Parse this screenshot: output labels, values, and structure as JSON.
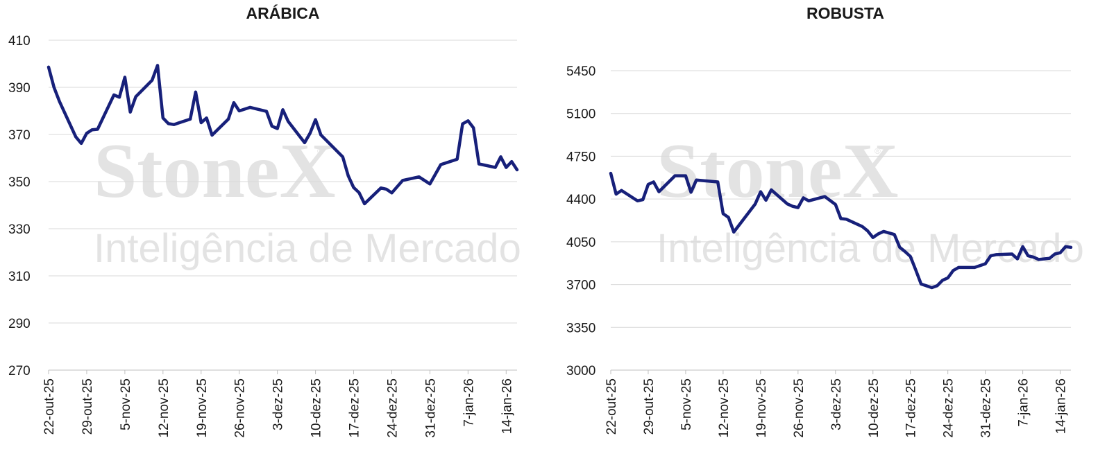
{
  "watermark": {
    "brand": "StoneX",
    "registered": "®",
    "subtitle": "Inteligência de Mercado"
  },
  "colors": {
    "series": "#17207a",
    "grid": "#d9d9d9",
    "watermark": "#e3e3e3"
  },
  "chart_data": [
    {
      "id": "arabica",
      "type": "line",
      "title": "ARÁBICA",
      "xlabel": "",
      "ylabel": "",
      "ylim": [
        270,
        410
      ],
      "yticks": [
        270,
        290,
        310,
        330,
        350,
        370,
        390,
        410
      ],
      "grid": true,
      "x_tick_labels": [
        "22-out-25",
        "29-out-25",
        "5-nov-25",
        "12-nov-25",
        "19-nov-25",
        "26-nov-25",
        "3-dez-25",
        "10-dez-25",
        "17-dez-25",
        "24-dez-25",
        "31-dez-25",
        "7-jan-26",
        "14-jan-26"
      ],
      "x_range": [
        "2025-10-22",
        "2026-01-16"
      ],
      "series": [
        {
          "points": [
            [
              "2025-10-22",
              398.6
            ],
            [
              "2025-10-23",
              390.0
            ],
            [
              "2025-10-24",
              384.0
            ],
            [
              "2025-10-27",
              369.0
            ],
            [
              "2025-10-28",
              366.2
            ],
            [
              "2025-10-29",
              370.5
            ],
            [
              "2025-10-30",
              372.0
            ],
            [
              "2025-10-31",
              372.2
            ],
            [
              "2025-11-03",
              386.8
            ],
            [
              "2025-11-04",
              385.8
            ],
            [
              "2025-11-05",
              394.3
            ],
            [
              "2025-11-06",
              379.5
            ],
            [
              "2025-11-07",
              386.0
            ],
            [
              "2025-11-10",
              393.0
            ],
            [
              "2025-11-11",
              399.3
            ],
            [
              "2025-11-12",
              377.0
            ],
            [
              "2025-11-13",
              374.6
            ],
            [
              "2025-11-14",
              374.2
            ],
            [
              "2025-11-17",
              376.5
            ],
            [
              "2025-11-18",
              388.0
            ],
            [
              "2025-11-19",
              375.0
            ],
            [
              "2025-11-20",
              377.0
            ],
            [
              "2025-11-21",
              369.7
            ],
            [
              "2025-11-24",
              376.5
            ],
            [
              "2025-11-25",
              383.5
            ],
            [
              "2025-11-26",
              380.0
            ],
            [
              "2025-11-28",
              381.5
            ],
            [
              "2025-12-01",
              379.8
            ],
            [
              "2025-12-02",
              373.5
            ],
            [
              "2025-12-03",
              372.5
            ],
            [
              "2025-12-04",
              380.5
            ],
            [
              "2025-12-05",
              375.5
            ],
            [
              "2025-12-08",
              366.5
            ],
            [
              "2025-12-09",
              370.5
            ],
            [
              "2025-12-10",
              376.3
            ],
            [
              "2025-12-11",
              369.8
            ],
            [
              "2025-12-15",
              360.5
            ],
            [
              "2025-12-16",
              352.5
            ],
            [
              "2025-12-17",
              347.5
            ],
            [
              "2025-12-18",
              345.3
            ],
            [
              "2025-12-19",
              340.6
            ],
            [
              "2025-12-22",
              347.3
            ],
            [
              "2025-12-23",
              346.8
            ],
            [
              "2025-12-24",
              345.2
            ],
            [
              "2025-12-26",
              350.5
            ],
            [
              "2025-12-29",
              352.0
            ],
            [
              "2025-12-30",
              350.5
            ],
            [
              "2025-12-31",
              349.0
            ],
            [
              "2026-01-02",
              357.2
            ],
            [
              "2026-01-05",
              359.5
            ],
            [
              "2026-01-06",
              374.5
            ],
            [
              "2026-01-07",
              375.8
            ],
            [
              "2026-01-08",
              372.8
            ],
            [
              "2026-01-09",
              357.5
            ],
            [
              "2026-01-12",
              356.0
            ],
            [
              "2026-01-13",
              360.5
            ],
            [
              "2026-01-14",
              356.0
            ],
            [
              "2026-01-15",
              358.5
            ],
            [
              "2026-01-16",
              355.0
            ]
          ]
        }
      ]
    },
    {
      "id": "robusta",
      "type": "line",
      "title": "ROBUSTA",
      "xlabel": "",
      "ylabel": "",
      "ylim": [
        3000,
        5450
      ],
      "yticks": [
        3000,
        3350,
        3700,
        4050,
        4400,
        4750,
        5100,
        5450
      ],
      "grid": true,
      "x_tick_labels": [
        "22-out-25",
        "29-out-25",
        "5-nov-25",
        "12-nov-25",
        "19-nov-25",
        "26-nov-25",
        "3-dez-25",
        "10-dez-25",
        "17-dez-25",
        "24-dez-25",
        "31-dez-25",
        "7-jan-26",
        "14-jan-26"
      ],
      "x_range": [
        "2025-10-22",
        "2026-01-16"
      ],
      "series": [
        {
          "points": [
            [
              "2025-10-22",
              4610
            ],
            [
              "2025-10-23",
              4440
            ],
            [
              "2025-10-24",
              4470
            ],
            [
              "2025-10-27",
              4385
            ],
            [
              "2025-10-28",
              4395
            ],
            [
              "2025-10-29",
              4520
            ],
            [
              "2025-10-30",
              4540
            ],
            [
              "2025-10-31",
              4460
            ],
            [
              "2025-11-03",
              4590
            ],
            [
              "2025-11-04",
              4590
            ],
            [
              "2025-11-05",
              4590
            ],
            [
              "2025-11-06",
              4455
            ],
            [
              "2025-11-07",
              4555
            ],
            [
              "2025-11-11",
              4540
            ],
            [
              "2025-11-12",
              4280
            ],
            [
              "2025-11-13",
              4250
            ],
            [
              "2025-11-14",
              4130
            ],
            [
              "2025-11-18",
              4360
            ],
            [
              "2025-11-19",
              4460
            ],
            [
              "2025-11-20",
              4390
            ],
            [
              "2025-11-21",
              4475
            ],
            [
              "2025-11-24",
              4360
            ],
            [
              "2025-11-25",
              4340
            ],
            [
              "2025-11-26",
              4330
            ],
            [
              "2025-11-27",
              4410
            ],
            [
              "2025-11-28",
              4385
            ],
            [
              "2025-12-01",
              4420
            ],
            [
              "2025-12-03",
              4355
            ],
            [
              "2025-12-04",
              4240
            ],
            [
              "2025-12-05",
              4235
            ],
            [
              "2025-12-08",
              4175
            ],
            [
              "2025-12-09",
              4140
            ],
            [
              "2025-12-10",
              4085
            ],
            [
              "2025-12-11",
              4115
            ],
            [
              "2025-12-12",
              4135
            ],
            [
              "2025-12-14",
              4110
            ],
            [
              "2025-12-15",
              4005
            ],
            [
              "2025-12-16",
              3970
            ],
            [
              "2025-12-17",
              3930
            ],
            [
              "2025-12-18",
              3820
            ],
            [
              "2025-12-19",
              3705
            ],
            [
              "2025-12-21",
              3675
            ],
            [
              "2025-12-22",
              3690
            ],
            [
              "2025-12-23",
              3735
            ],
            [
              "2025-12-24",
              3755
            ],
            [
              "2025-12-25",
              3815
            ],
            [
              "2025-12-26",
              3840
            ],
            [
              "2025-12-29",
              3840
            ],
            [
              "2025-12-30",
              3855
            ],
            [
              "2025-12-31",
              3870
            ],
            [
              "2026-01-01",
              3935
            ],
            [
              "2026-01-02",
              3945
            ],
            [
              "2026-01-05",
              3950
            ],
            [
              "2026-01-06",
              3910
            ],
            [
              "2026-01-07",
              4010
            ],
            [
              "2026-01-08",
              3935
            ],
            [
              "2026-01-09",
              3925
            ],
            [
              "2026-01-10",
              3905
            ],
            [
              "2026-01-12",
              3915
            ],
            [
              "2026-01-13",
              3950
            ],
            [
              "2026-01-14",
              3960
            ],
            [
              "2026-01-15",
              4010
            ],
            [
              "2026-01-16",
              4005
            ]
          ]
        }
      ]
    }
  ]
}
